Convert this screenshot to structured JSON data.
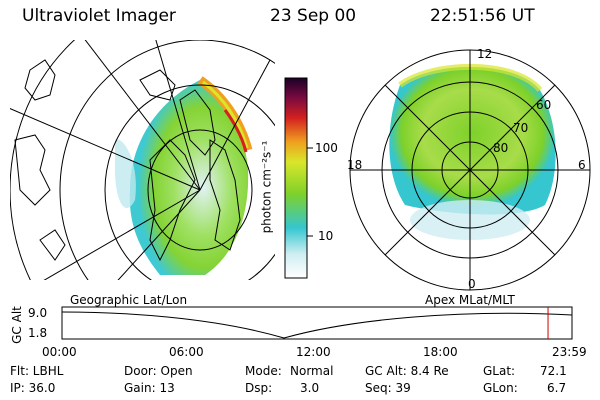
{
  "header": {
    "instrument": "Ultraviolet Imager",
    "date": "23 Sep 00",
    "time": "22:51:56 UT"
  },
  "colorbar": {
    "label": "photon cm⁻²s⁻¹",
    "ticks": [
      "100",
      "10"
    ]
  },
  "polar_plot": {
    "mlt_labels": [
      "12",
      "18",
      "6",
      "0"
    ],
    "lat_labels": [
      "60",
      "70",
      "80"
    ]
  },
  "map_labels": {
    "left": "Geographic Lat/Lon",
    "right": "Apex MLat/MLT"
  },
  "timeline": {
    "ylabel": "GC Alt",
    "yticks": [
      "9.0",
      "1.8"
    ],
    "xticks": [
      "00:00",
      "06:00",
      "12:00",
      "18:00",
      "23:59"
    ],
    "current_time_fraction": 0.953
  },
  "info": {
    "row1": {
      "flt": "Flt: LBHL",
      "door": "Door: Open",
      "mode_label": "Mode:",
      "mode": "Normal",
      "gcalt": "GC Alt: 8.4 Re",
      "glat_label": "GLat:",
      "glat": "72.1"
    },
    "row2": {
      "ip": "IP: 36.0",
      "gain": "Gain: 13",
      "dsp_label": "Dsp:",
      "dsp": "3.0",
      "seq": "Seq: 39",
      "glon_label": "GLon:",
      "glon": "6.7"
    }
  },
  "colors": {
    "low": "#cfeef2",
    "cyan": "#35c6cf",
    "green": "#7ed12a",
    "yellow": "#d9e62a",
    "orange": "#f0a020",
    "red": "#d42020",
    "top": "#1a0028",
    "marker": "#cc0000"
  }
}
